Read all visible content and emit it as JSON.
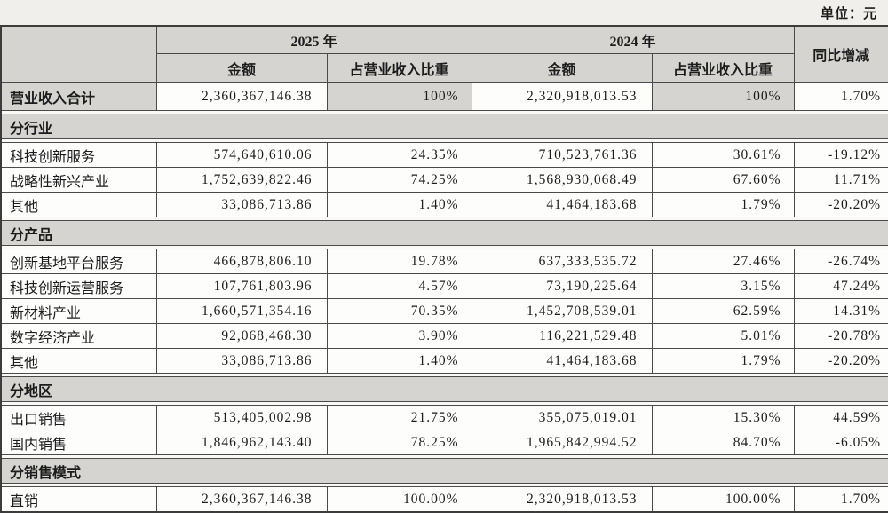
{
  "unit_label": "单位：元",
  "colors": {
    "header_bg": "#d5d4d1",
    "cell_bg": "#fdfdfc",
    "page_bg": "#f1efec",
    "border": "#4a4a4a",
    "text": "#1c1c1c"
  },
  "table": {
    "headers": {
      "year_2025": "2025 年",
      "year_2024": "2024 年",
      "amount": "金额",
      "ratio": "占营业收入比重",
      "yoy": "同比增减"
    },
    "rows": [
      {
        "type": "data",
        "emphasis": true,
        "label": "营业收入合计",
        "amount_2025": "2,360,367,146.38",
        "ratio_2025": "100%",
        "amount_2024": "2,320,918,013.53",
        "ratio_2024": "100%",
        "yoy": "1.70%"
      },
      {
        "type": "section",
        "label": "分行业"
      },
      {
        "type": "data",
        "label": "科技创新服务",
        "amount_2025": "574,640,610.06",
        "ratio_2025": "24.35%",
        "amount_2024": "710,523,761.36",
        "ratio_2024": "30.61%",
        "yoy": "-19.12%"
      },
      {
        "type": "data",
        "label": "战略性新兴产业",
        "amount_2025": "1,752,639,822.46",
        "ratio_2025": "74.25%",
        "amount_2024": "1,568,930,068.49",
        "ratio_2024": "67.60%",
        "yoy": "11.71%"
      },
      {
        "type": "data",
        "label": "其他",
        "amount_2025": "33,086,713.86",
        "ratio_2025": "1.40%",
        "amount_2024": "41,464,183.68",
        "ratio_2024": "1.79%",
        "yoy": "-20.20%"
      },
      {
        "type": "section",
        "label": "分产品"
      },
      {
        "type": "data",
        "label": "创新基地平台服务",
        "amount_2025": "466,878,806.10",
        "ratio_2025": "19.78%",
        "amount_2024": "637,333,535.72",
        "ratio_2024": "27.46%",
        "yoy": "-26.74%"
      },
      {
        "type": "data",
        "label": "科技创新运营服务",
        "amount_2025": "107,761,803.96",
        "ratio_2025": "4.57%",
        "amount_2024": "73,190,225.64",
        "ratio_2024": "3.15%",
        "yoy": "47.24%"
      },
      {
        "type": "data",
        "label": "新材料产业",
        "amount_2025": "1,660,571,354.16",
        "ratio_2025": "70.35%",
        "amount_2024": "1,452,708,539.01",
        "ratio_2024": "62.59%",
        "yoy": "14.31%"
      },
      {
        "type": "data",
        "label": "数字经济产业",
        "amount_2025": "92,068,468.30",
        "ratio_2025": "3.90%",
        "amount_2024": "116,221,529.48",
        "ratio_2024": "5.01%",
        "yoy": "-20.78%"
      },
      {
        "type": "data",
        "label": "其他",
        "amount_2025": "33,086,713.86",
        "ratio_2025": "1.40%",
        "amount_2024": "41,464,183.68",
        "ratio_2024": "1.79%",
        "yoy": "-20.20%"
      },
      {
        "type": "section",
        "label": "分地区"
      },
      {
        "type": "data",
        "label": "出口销售",
        "amount_2025": "513,405,002.98",
        "ratio_2025": "21.75%",
        "amount_2024": "355,075,019.01",
        "ratio_2024": "15.30%",
        "yoy": "44.59%"
      },
      {
        "type": "data",
        "label": "国内销售",
        "amount_2025": "1,846,962,143.40",
        "ratio_2025": "78.25%",
        "amount_2024": "1,965,842,994.52",
        "ratio_2024": "84.70%",
        "yoy": "-6.05%"
      },
      {
        "type": "section",
        "label": "分销售模式"
      },
      {
        "type": "data",
        "label": "直销",
        "amount_2025": "2,360,367,146.38",
        "ratio_2025": "100.00%",
        "amount_2024": "2,320,918,013.53",
        "ratio_2024": "100.00%",
        "yoy": "1.70%"
      }
    ]
  }
}
